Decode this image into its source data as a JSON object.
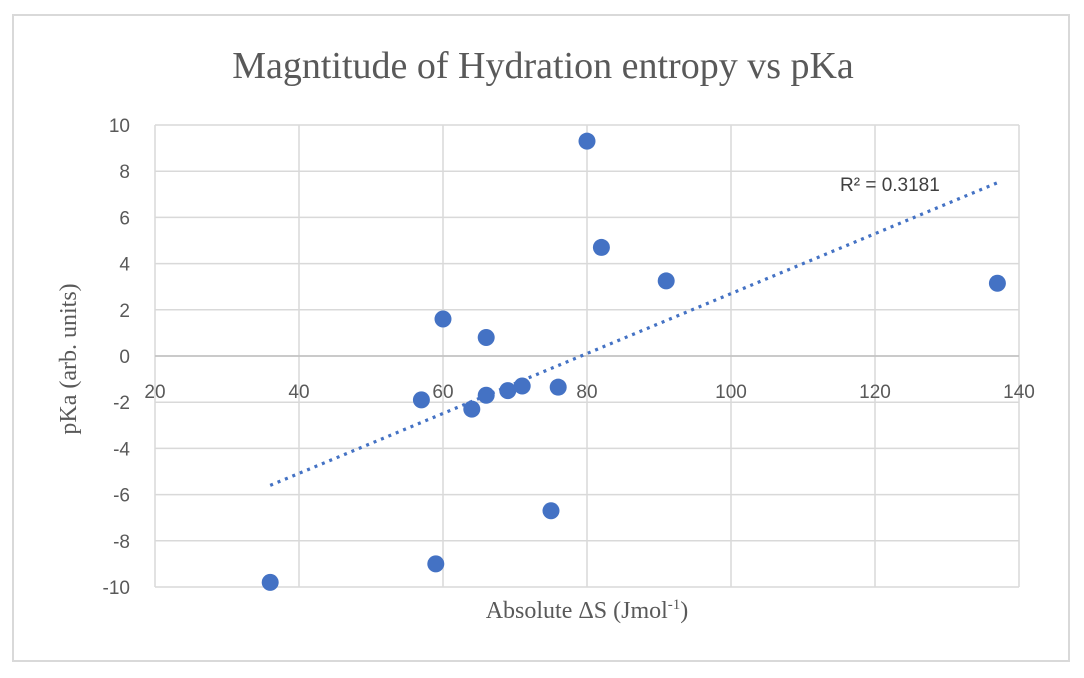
{
  "chart_data": {
    "type": "scatter",
    "title": "Magntitude of Hydration entropy vs pKa",
    "xlabel": "Absolute ΔS (Jmol",
    "xlabel_superscript": "-1",
    "xlabel_suffix": ")",
    "ylabel": "pKa (arb. units)",
    "xlim": [
      20,
      140
    ],
    "ylim": [
      -10,
      10
    ],
    "x_ticks": [
      20,
      40,
      60,
      80,
      100,
      120,
      140
    ],
    "y_ticks": [
      10,
      8,
      6,
      4,
      2,
      0,
      -2,
      -4,
      -6,
      -8,
      -10
    ],
    "grid": true,
    "series": [
      {
        "name": "pKa",
        "color": "#4472c4",
        "points": [
          {
            "x": 36,
            "y": -9.8
          },
          {
            "x": 57,
            "y": -1.9
          },
          {
            "x": 59,
            "y": -9.0
          },
          {
            "x": 60,
            "y": 1.6
          },
          {
            "x": 64,
            "y": -2.3
          },
          {
            "x": 66,
            "y": 0.8
          },
          {
            "x": 66,
            "y": -1.7
          },
          {
            "x": 69,
            "y": -1.5
          },
          {
            "x": 71,
            "y": -1.3
          },
          {
            "x": 75,
            "y": -6.7
          },
          {
            "x": 76,
            "y": -1.35
          },
          {
            "x": 80,
            "y": 9.3
          },
          {
            "x": 82,
            "y": 4.7
          },
          {
            "x": 91,
            "y": 3.25
          },
          {
            "x": 137,
            "y": 3.15
          }
        ]
      }
    ],
    "trendline": {
      "type": "linear",
      "color": "#4472c4",
      "x_range": [
        36,
        137
      ],
      "y_range": [
        -5.6,
        7.5
      ],
      "label": "R² = 0.3181"
    }
  }
}
